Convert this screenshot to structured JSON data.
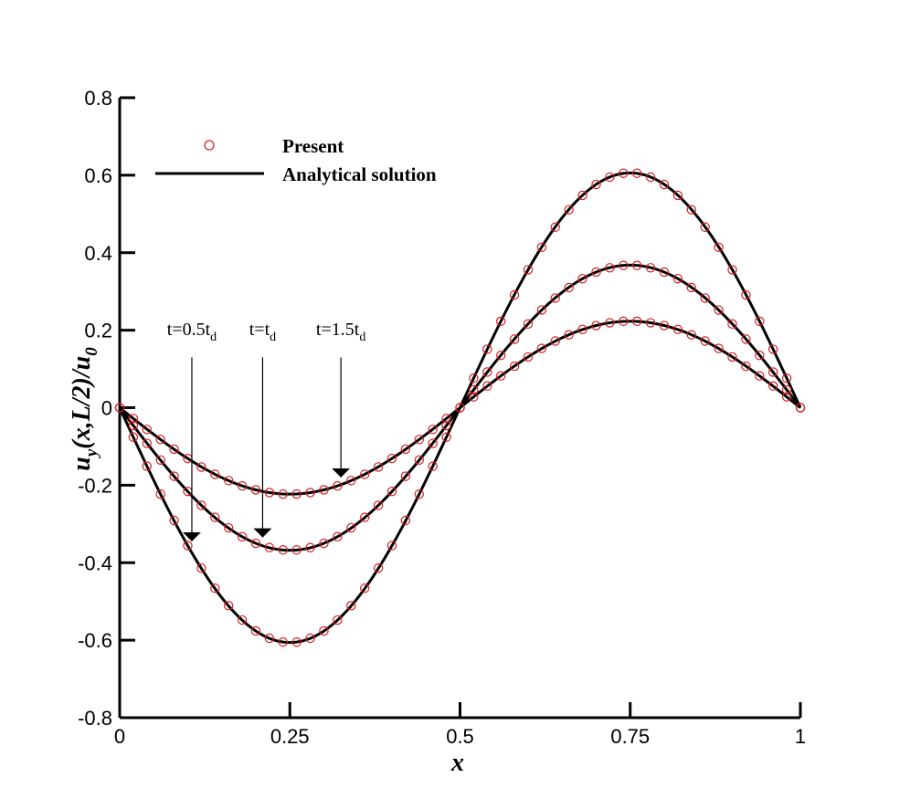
{
  "chart_data": {
    "type": "line",
    "xlabel": "x",
    "ylabel_parts": [
      "u",
      "y",
      "(x,L/2)/u",
      "0"
    ],
    "xlim": [
      0,
      1
    ],
    "ylim": [
      -0.8,
      0.8
    ],
    "xticks": [
      "0",
      "0.25",
      "0.5",
      "0.75",
      "1"
    ],
    "xtick_values": [
      0,
      0.25,
      0.5,
      0.75,
      1
    ],
    "yticks": [
      "-0.8",
      "-0.6",
      "-0.4",
      "-0.2",
      "0",
      "0.2",
      "0.4",
      "0.6",
      "0.8"
    ],
    "ytick_values": [
      -0.8,
      -0.6,
      -0.4,
      -0.2,
      0,
      0.2,
      0.4,
      0.6,
      0.8
    ],
    "grid": false,
    "legend": {
      "position": "top-left",
      "entries": [
        {
          "label": "Present",
          "marker": "circle",
          "color": "#d62020"
        },
        {
          "label": "Analytical solution",
          "marker": "line",
          "color": "#000000"
        }
      ]
    },
    "analytical": [
      {
        "amplitude": 0.606,
        "time": "0.5t_d"
      },
      {
        "amplitude": 0.368,
        "time": "t_d"
      },
      {
        "amplitude": 0.223,
        "time": "1.5t_d"
      }
    ],
    "series": [
      {
        "amplitude": 0.606,
        "present_x": [
          0,
          0.02,
          0.04,
          0.06,
          0.08,
          0.1,
          0.12,
          0.14,
          0.16,
          0.18,
          0.2,
          0.22,
          0.24,
          0.26,
          0.28,
          0.3,
          0.32,
          0.34,
          0.36,
          0.38,
          0.4,
          0.42,
          0.44,
          0.46,
          0.48,
          0.5,
          0.52,
          0.54,
          0.56,
          0.58,
          0.6,
          0.62,
          0.64,
          0.66,
          0.68,
          0.7,
          0.72,
          0.74,
          0.76,
          0.78,
          0.8,
          0.82,
          0.84,
          0.86,
          0.88,
          0.9,
          0.92,
          0.94,
          0.96,
          0.98,
          1
        ],
        "present_y": [
          0,
          -0.076,
          -0.151,
          -0.223,
          -0.291,
          -0.356,
          -0.414,
          -0.466,
          -0.511,
          -0.548,
          -0.576,
          -0.595,
          -0.605,
          -0.605,
          -0.595,
          -0.576,
          -0.548,
          -0.511,
          -0.466,
          -0.414,
          -0.356,
          -0.291,
          -0.223,
          -0.151,
          -0.076,
          0,
          0.076,
          0.151,
          0.223,
          0.291,
          0.356,
          0.414,
          0.466,
          0.511,
          0.548,
          0.576,
          0.595,
          0.605,
          0.605,
          0.595,
          0.576,
          0.548,
          0.511,
          0.466,
          0.414,
          0.356,
          0.291,
          0.223,
          0.151,
          0.076,
          0
        ]
      },
      {
        "amplitude": 0.368,
        "present_x": [
          0,
          0.02,
          0.04,
          0.06,
          0.08,
          0.1,
          0.12,
          0.14,
          0.16,
          0.18,
          0.2,
          0.22,
          0.24,
          0.26,
          0.28,
          0.3,
          0.32,
          0.34,
          0.36,
          0.38,
          0.4,
          0.42,
          0.44,
          0.46,
          0.48,
          0.5,
          0.52,
          0.54,
          0.56,
          0.58,
          0.6,
          0.62,
          0.64,
          0.66,
          0.68,
          0.7,
          0.72,
          0.74,
          0.76,
          0.78,
          0.8,
          0.82,
          0.84,
          0.86,
          0.88,
          0.9,
          0.92,
          0.94,
          0.96,
          0.98,
          1
        ],
        "present_y": [
          0,
          -0.046,
          -0.092,
          -0.135,
          -0.177,
          -0.216,
          -0.252,
          -0.283,
          -0.31,
          -0.333,
          -0.35,
          -0.361,
          -0.367,
          -0.367,
          -0.361,
          -0.35,
          -0.333,
          -0.31,
          -0.283,
          -0.252,
          -0.216,
          -0.177,
          -0.135,
          -0.092,
          -0.046,
          0,
          0.046,
          0.092,
          0.135,
          0.177,
          0.216,
          0.252,
          0.283,
          0.31,
          0.333,
          0.35,
          0.361,
          0.367,
          0.367,
          0.361,
          0.35,
          0.333,
          0.31,
          0.283,
          0.252,
          0.216,
          0.177,
          0.135,
          0.092,
          0.046,
          0
        ]
      },
      {
        "amplitude": 0.223,
        "present_x": [
          0,
          0.02,
          0.04,
          0.06,
          0.08,
          0.1,
          0.12,
          0.14,
          0.16,
          0.18,
          0.2,
          0.22,
          0.24,
          0.26,
          0.28,
          0.3,
          0.32,
          0.34,
          0.36,
          0.38,
          0.4,
          0.42,
          0.44,
          0.46,
          0.48,
          0.5,
          0.52,
          0.54,
          0.56,
          0.58,
          0.6,
          0.62,
          0.64,
          0.66,
          0.68,
          0.7,
          0.72,
          0.74,
          0.76,
          0.78,
          0.8,
          0.82,
          0.84,
          0.86,
          0.88,
          0.9,
          0.92,
          0.94,
          0.96,
          0.98,
          1
        ],
        "present_y": [
          0,
          -0.028,
          -0.056,
          -0.082,
          -0.107,
          -0.131,
          -0.153,
          -0.172,
          -0.188,
          -0.202,
          -0.212,
          -0.219,
          -0.223,
          -0.223,
          -0.219,
          -0.212,
          -0.202,
          -0.188,
          -0.172,
          -0.153,
          -0.131,
          -0.107,
          -0.082,
          -0.056,
          -0.028,
          0,
          0.028,
          0.056,
          0.082,
          0.107,
          0.131,
          0.153,
          0.172,
          0.188,
          0.202,
          0.212,
          0.219,
          0.223,
          0.223,
          0.219,
          0.212,
          0.202,
          0.188,
          0.172,
          0.153,
          0.131,
          0.107,
          0.082,
          0.056,
          0.028,
          0
        ]
      }
    ],
    "annotations": [
      {
        "base": "t=0.5t",
        "sub": "d",
        "arrow_from": [
          0.106,
          0.13
        ],
        "arrow_to": [
          0.106,
          -0.345
        ]
      },
      {
        "base": "t=t",
        "sub": "d",
        "arrow_from": [
          0.21,
          0.13
        ],
        "arrow_to": [
          0.21,
          -0.335
        ]
      },
      {
        "base": "t=1.5t",
        "sub": "d",
        "arrow_from": [
          0.325,
          0.13
        ],
        "arrow_to": [
          0.325,
          -0.18
        ]
      }
    ],
    "colors": {
      "marker": "#d62020",
      "line": "#000000"
    }
  }
}
